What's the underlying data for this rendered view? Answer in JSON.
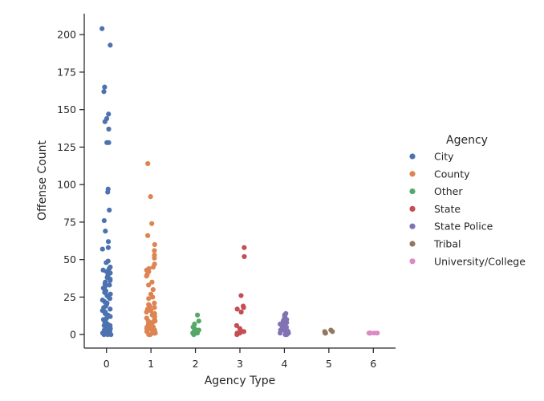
{
  "chart_data": {
    "type": "scatter",
    "title": "",
    "xlabel": "Agency Type",
    "ylabel": "Offense Count",
    "xlim": [
      -0.5,
      6.5
    ],
    "ylim": [
      -9,
      214
    ],
    "x_ticks": [
      0,
      1,
      2,
      3,
      4,
      5,
      6
    ],
    "y_ticks": [
      0,
      25,
      50,
      75,
      100,
      125,
      150,
      175,
      200
    ],
    "grid": false,
    "legend": {
      "title": "Agency",
      "placement": "right"
    },
    "series": [
      {
        "name": "City",
        "color": "#4c72b0",
        "x": 0,
        "values": [
          204,
          193,
          165,
          162,
          147,
          144,
          142,
          137,
          128,
          128,
          97,
          95,
          83,
          76,
          69,
          62,
          58,
          57,
          49,
          48,
          45,
          44,
          43,
          42,
          41,
          40,
          39,
          38,
          37,
          36,
          35,
          34,
          33,
          32,
          31,
          30,
          29,
          28,
          27,
          26,
          25,
          24,
          23,
          22,
          21,
          20,
          19,
          18,
          17,
          16,
          15,
          14,
          13,
          12,
          11,
          10,
          10,
          9,
          9,
          8,
          8,
          7,
          7,
          6,
          6,
          6,
          5,
          5,
          5,
          4,
          4,
          4,
          4,
          3,
          3,
          3,
          3,
          2,
          2,
          2,
          2,
          2,
          1,
          1,
          1,
          1,
          1,
          1,
          0,
          0,
          0
        ]
      },
      {
        "name": "County",
        "color": "#dd8452",
        "x": 1,
        "values": [
          114,
          92,
          74,
          66,
          60,
          56,
          53,
          51,
          47,
          45,
          44,
          43,
          42,
          40,
          39,
          35,
          33,
          30,
          27,
          25,
          24,
          21,
          20,
          19,
          18,
          17,
          16,
          15,
          14,
          13,
          12,
          11,
          10,
          9,
          9,
          8,
          8,
          7,
          7,
          6,
          6,
          5,
          5,
          5,
          4,
          4,
          4,
          3,
          3,
          3,
          2,
          2,
          2,
          2,
          1,
          1,
          1,
          1,
          0,
          0
        ]
      },
      {
        "name": "Other",
        "color": "#55a868",
        "x": 2,
        "values": [
          13,
          9,
          7,
          5,
          4,
          3,
          3,
          2,
          2,
          2,
          1,
          1,
          1,
          1,
          0
        ]
      },
      {
        "name": "State",
        "color": "#c44e52",
        "x": 3,
        "values": [
          58,
          52,
          26,
          19,
          18,
          17,
          15,
          6,
          4,
          3,
          2,
          2,
          1,
          1,
          1,
          0
        ]
      },
      {
        "name": "State Police",
        "color": "#8172b3",
        "x": 4,
        "values": [
          14,
          13,
          12,
          11,
          10,
          9,
          8,
          7,
          7,
          6,
          6,
          5,
          5,
          4,
          4,
          3,
          3,
          3,
          2,
          2,
          2,
          1,
          1,
          1,
          0,
          0
        ]
      },
      {
        "name": "Tribal",
        "color": "#937860",
        "x": 5,
        "values": [
          3,
          2,
          2,
          1,
          1,
          1
        ]
      },
      {
        "name": "University/College",
        "color": "#da8bc3",
        "x": 6,
        "values": [
          1,
          1,
          1,
          1,
          1,
          1
        ]
      }
    ]
  }
}
